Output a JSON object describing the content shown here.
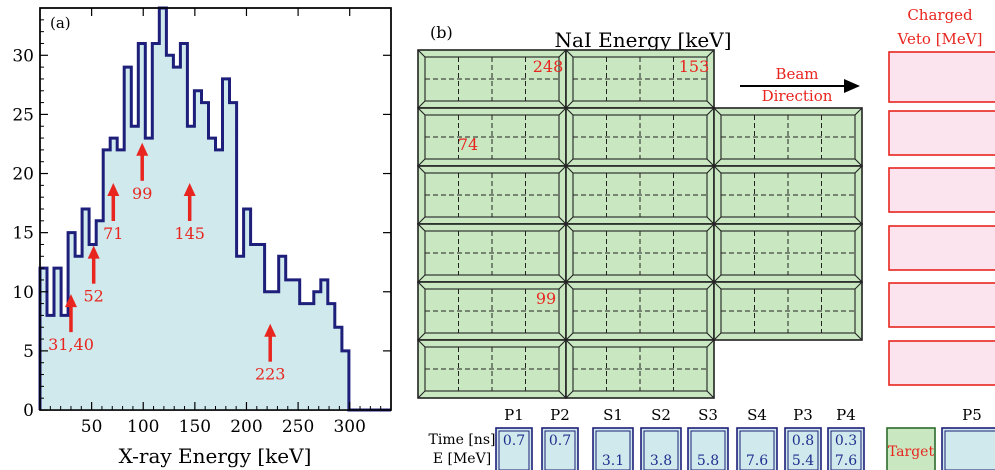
{
  "panel_a": {
    "label": "(a)",
    "xlabel": "X-ray Energy [keV]",
    "chart_data": {
      "type": "area",
      "title": "",
      "xlabel": "X-ray Energy [keV]",
      "ylabel": "",
      "xlim": [
        0,
        340
      ],
      "ylim": [
        0,
        34
      ],
      "x_ticks": [
        50,
        100,
        150,
        200,
        250,
        300
      ],
      "y_ticks": [
        0,
        5,
        10,
        15,
        20,
        25,
        30
      ],
      "bin_width": 6.8,
      "x_start": 0,
      "values": [
        12,
        8,
        12,
        8,
        15,
        13,
        17,
        14,
        16,
        22,
        23,
        22,
        29,
        24,
        31,
        23,
        31,
        34,
        30,
        29,
        31,
        24,
        27,
        26,
        23,
        22,
        28,
        26,
        13,
        17,
        14,
        14,
        10,
        10,
        13,
        11,
        11,
        9,
        9,
        10,
        11,
        9,
        7,
        5,
        0,
        0,
        0,
        0,
        0,
        0
      ],
      "fill_color": "#cfe9ec",
      "line_color": "#1d1f7a",
      "annotations": [
        {
          "label": "31,40",
          "x": 30,
          "y": 9.8
        },
        {
          "label": "52",
          "x": 52,
          "y": 13.9
        },
        {
          "label": "71",
          "x": 71,
          "y": 19.2
        },
        {
          "label": "99",
          "x": 99,
          "y": 22.6
        },
        {
          "label": "145",
          "x": 145,
          "y": 19.2
        },
        {
          "label": "223",
          "x": 223,
          "y": 7.3
        }
      ]
    }
  },
  "panel_b": {
    "label": "(b)",
    "title": "NaI Energy [keV]",
    "beam_label_1": "Beam",
    "beam_label_2": "Direction",
    "veto_label_1": "Charged",
    "veto_label_2": "Veto [MeV]",
    "nai_values": [
      {
        "label": "248",
        "row": 0,
        "col": 0
      },
      {
        "label": "153",
        "row": 0,
        "col": 1
      },
      {
        "label": "74",
        "row": 1,
        "col": 0
      },
      {
        "label": "99",
        "row": 4,
        "col": 0
      }
    ],
    "detector_row": {
      "time_label": "Time [ns]",
      "energy_label": "E [MeV]",
      "target_label": "Target",
      "detectors": [
        {
          "name": "P1",
          "time": "0.7",
          "energy": ""
        },
        {
          "name": "P2",
          "time": "0.7",
          "energy": ""
        },
        {
          "name": "S1",
          "time": "",
          "energy": "3.1"
        },
        {
          "name": "S2",
          "time": "",
          "energy": "3.8"
        },
        {
          "name": "S3",
          "time": "",
          "energy": "5.8"
        },
        {
          "name": "S4",
          "time": "",
          "energy": "7.6"
        },
        {
          "name": "P3",
          "time": "0.8",
          "energy": "5.4"
        },
        {
          "name": "P4",
          "time": "0.3",
          "energy": "7.6"
        },
        {
          "name": "P5",
          "time": "",
          "energy": ""
        }
      ]
    },
    "colors": {
      "nai_fill": "#c9e8c2",
      "veto_fill": "#fce4ee",
      "veto_stroke": "#e8251f",
      "detector_fill": "#cfe9ec",
      "detector_stroke": "#1d1f7a",
      "annotation_red": "#e8251f",
      "value_blue": "#1f2f8f"
    }
  }
}
